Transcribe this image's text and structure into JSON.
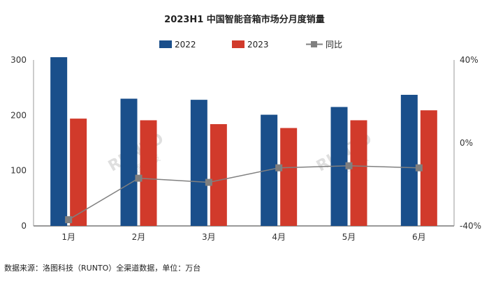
{
  "chart_data": {
    "type": "bar",
    "title": "2023H1 中国智能音箱市场分月度销量",
    "categories": [
      "1月",
      "2月",
      "3月",
      "4月",
      "5月",
      "6月"
    ],
    "series": [
      {
        "name": "2022",
        "type": "bar",
        "axis": "left",
        "values": [
          305,
          230,
          228,
          201,
          215,
          237
        ],
        "color": "#1a4f8b"
      },
      {
        "name": "2023",
        "type": "bar",
        "axis": "left",
        "values": [
          194,
          191,
          184,
          177,
          191,
          209
        ],
        "color": "#d13a2b"
      },
      {
        "name": "同比",
        "type": "line",
        "axis": "right",
        "values": [
          -37,
          -17,
          -19,
          -12,
          -11,
          -12
        ],
        "color": "#808080"
      }
    ],
    "y_left": {
      "min": 0,
      "max": 300,
      "ticks": [
        "0",
        "100",
        "200",
        "300"
      ]
    },
    "y_right": {
      "min": -40,
      "max": 40,
      "ticks": [
        "-40%",
        "0%",
        "40%"
      ]
    },
    "legend_position": "top",
    "watermark": "RUNTO 洛图科技",
    "source": "数据来源：洛图科技（RUNTO）全渠道数据，单位：万台"
  }
}
